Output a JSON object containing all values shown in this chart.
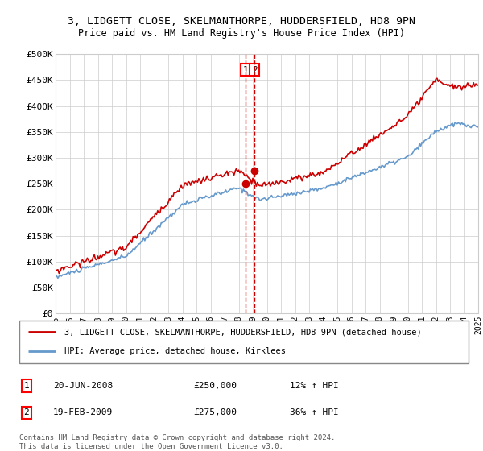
{
  "title1": "3, LIDGETT CLOSE, SKELMANTHORPE, HUDDERSFIELD, HD8 9PN",
  "title2": "Price paid vs. HM Land Registry's House Price Index (HPI)",
  "ylim": [
    0,
    500000
  ],
  "xlim_start": 1995,
  "xlim_end": 2025,
  "transaction1": {
    "date": "20-JUN-2008",
    "price": 250000,
    "label": "1",
    "hpi_pct": "12%",
    "arrow": "↑"
  },
  "transaction2": {
    "date": "19-FEB-2009",
    "price": 275000,
    "label": "2",
    "hpi_pct": "36%",
    "arrow": "↑"
  },
  "legend_line1": "3, LIDGETT CLOSE, SKELMANTHORPE, HUDDERSFIELD, HD8 9PN (detached house)",
  "legend_line2": "HPI: Average price, detached house, Kirklees",
  "footnote": "Contains HM Land Registry data © Crown copyright and database right 2024.\nThis data is licensed under the Open Government Licence v3.0.",
  "red_color": "#cc0000",
  "blue_color": "#6699cc",
  "t1_x": 2008.47,
  "t2_x": 2009.13
}
